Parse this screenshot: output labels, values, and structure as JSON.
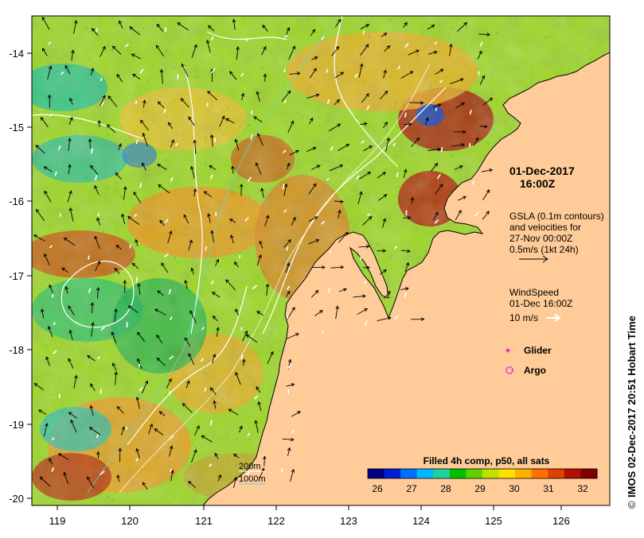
{
  "map": {
    "lon_ticks": [
      "119",
      "120",
      "121",
      "122",
      "123",
      "124",
      "125",
      "126"
    ],
    "lat_ticks": [
      "-14",
      "-15",
      "-16",
      "-17",
      "-18",
      "-19",
      "-20"
    ],
    "timestamp": {
      "date": "01-Dec-2017",
      "time": "16:00Z"
    },
    "gsla": {
      "line1": "GSLA (0.1m contours)",
      "line2": "and velocities for",
      "line3": "27-Nov 00:00Z",
      "line4": "0.5m/s (1kt 24h)"
    },
    "wind": {
      "line1": "WindSpeed",
      "line2": "01-Dec 16:00Z",
      "line3": "10 m/s"
    },
    "markers": {
      "glider": "Glider",
      "argo": "Argo"
    },
    "depth_contours": {
      "label_200": "200m",
      "label_1000": "1000m"
    },
    "colorbar": {
      "title": "Filled 4h comp, p50, all sats",
      "ticks": [
        "26",
        "27",
        "28",
        "29",
        "30",
        "31",
        "32"
      ],
      "colors": [
        "#000080",
        "#0020d0",
        "#0070ff",
        "#00b8ff",
        "#20d0a0",
        "#00c000",
        "#60d000",
        "#c0e000",
        "#ffe000",
        "#ffb000",
        "#ff7000",
        "#e04000",
        "#b01000",
        "#800000"
      ]
    },
    "credit": {
      "symbol": "©",
      "text": "IMOS 02-Dec-2017 20:51 Hobart Time"
    },
    "land_color": "#ffcc99"
  }
}
